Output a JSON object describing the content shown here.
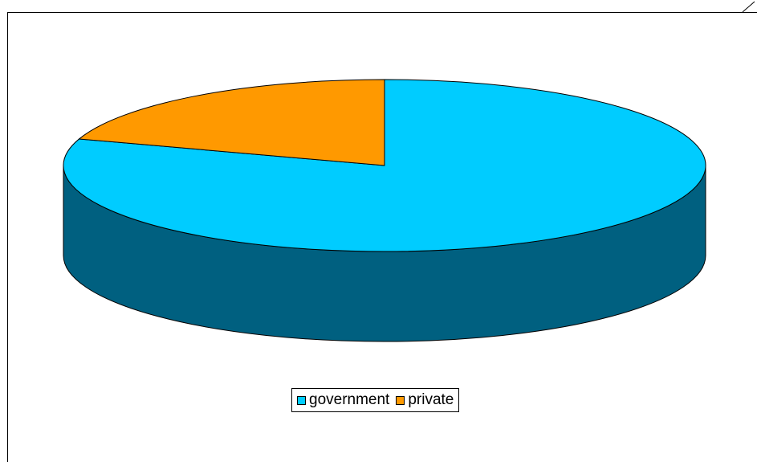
{
  "chart_data": {
    "type": "pie",
    "variant": "3d",
    "labels": [
      "government",
      "private"
    ],
    "values": [
      80,
      20
    ],
    "colors": [
      "#00CCFF",
      "#FF9900"
    ],
    "side_color": "#006080",
    "legend_position": "bottom",
    "title": ""
  },
  "legend": {
    "items": [
      {
        "label": "government",
        "color": "#00CCFF"
      },
      {
        "label": "private",
        "color": "#FF9900"
      }
    ]
  }
}
